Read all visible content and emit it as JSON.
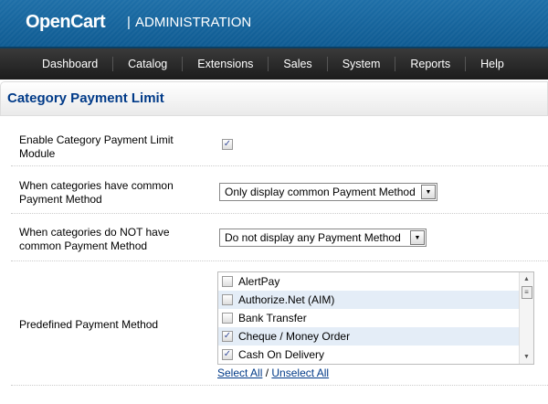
{
  "header": {
    "logo": "OpenCart",
    "separator": "|",
    "subtitle": "ADMINISTRATION"
  },
  "nav": [
    "Dashboard",
    "Catalog",
    "Extensions",
    "Sales",
    "System",
    "Reports",
    "Help"
  ],
  "page_title": "Category Payment Limit",
  "form": {
    "enable": {
      "label": "Enable Category Payment Limit Module",
      "checked": true
    },
    "common": {
      "label": "When categories have common Payment Method",
      "value": "Only display common Payment Method"
    },
    "not_common": {
      "label": "When categories do NOT have common Payment Method",
      "value": "Do not display any Payment Method"
    },
    "predefined": {
      "label": "Predefined Payment Method",
      "items": [
        {
          "label": "AlertPay",
          "checked": false
        },
        {
          "label": "Authorize.Net (AIM)",
          "checked": false
        },
        {
          "label": "Bank Transfer",
          "checked": false
        },
        {
          "label": "Cheque / Money Order",
          "checked": true
        },
        {
          "label": "Cash On Delivery",
          "checked": true
        }
      ],
      "select_all": "Select All",
      "divider": "/",
      "unselect_all": "Unselect All"
    }
  }
}
